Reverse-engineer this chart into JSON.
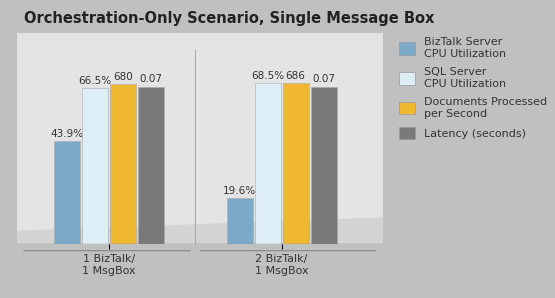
{
  "title": "Orchestration-Only Scenario, Single Message Box",
  "groups": [
    "1 BizTalk/\n1 MsgBox",
    "2 BizTalk/\n1 MsgBox"
  ],
  "series": [
    {
      "label": "BizTalk Server\nCPU Utilization",
      "color": "#7aaac8",
      "display_values": [
        43.9,
        19.6
      ]
    },
    {
      "label": "SQL Server\nCPU Utilization",
      "color": "#ddeef6",
      "display_values": [
        66.5,
        68.5
      ]
    },
    {
      "label": "Documents Processed\nper Second",
      "color": "#f0b830",
      "display_values": [
        68.0,
        68.6
      ]
    },
    {
      "label": "Latency (seconds)",
      "color": "#797979",
      "display_values": [
        67.0,
        67.0
      ]
    }
  ],
  "bar_labels": [
    [
      "43.9%",
      "66.5%",
      "680",
      "0.07"
    ],
    [
      "19.6%",
      "68.5%",
      "686",
      "0.07"
    ]
  ],
  "background_color": "#c0c0c0",
  "plot_bg_color": "#e4e4e4",
  "title_fontsize": 10.5,
  "tick_fontsize": 8,
  "label_fontsize": 7.5,
  "legend_fontsize": 8,
  "ylim": [
    0,
    90
  ],
  "bar_width": 0.12,
  "group_centers": [
    0.28,
    1.08
  ]
}
